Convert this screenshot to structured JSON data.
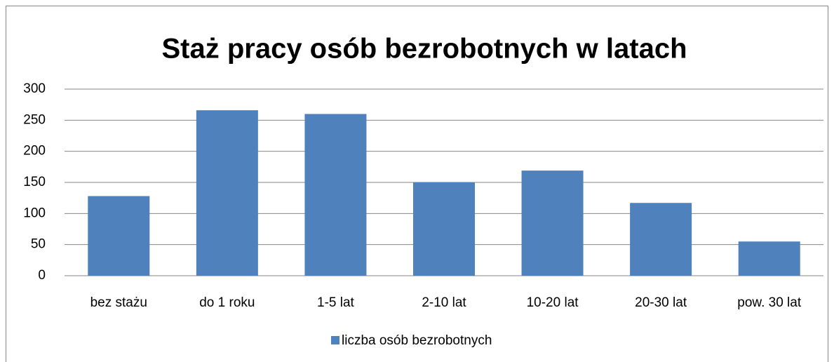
{
  "chart_data": {
    "type": "bar",
    "title": "Staż pracy osób bezrobotnych w latach",
    "categories": [
      "bez stażu",
      "do 1 roku",
      "1-5 lat",
      "2-10 lat",
      "10-20 lat",
      "20-30 lat",
      "pow. 30 lat"
    ],
    "series": [
      {
        "name": "liczba osób bezrobotnych",
        "color": "#4f81bd",
        "values": [
          128,
          266,
          260,
          150,
          169,
          117,
          55
        ]
      }
    ],
    "ylim": [
      0,
      300
    ],
    "yticks": [
      0,
      50,
      100,
      150,
      200,
      250,
      300
    ],
    "grid": true,
    "legend": "bottom"
  }
}
